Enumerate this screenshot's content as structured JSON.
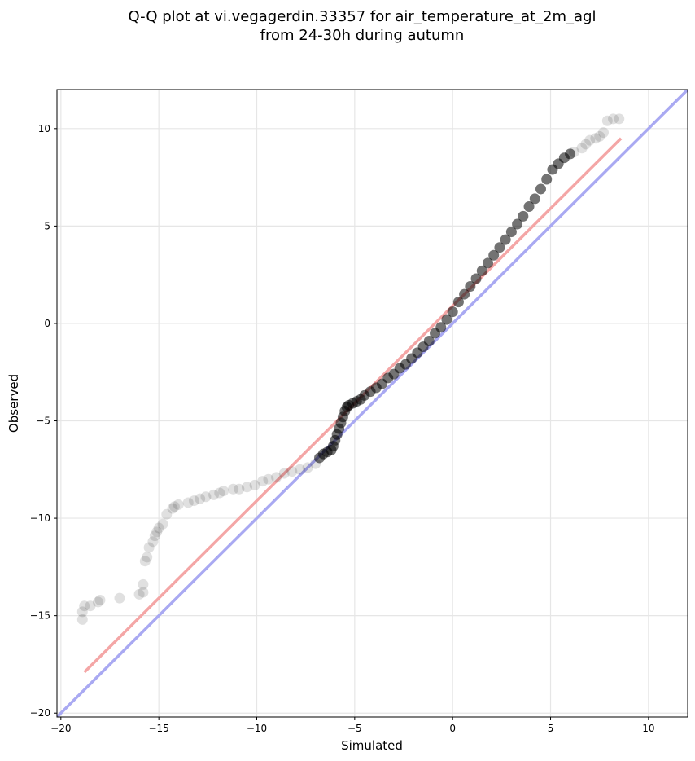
{
  "chart_data": {
    "type": "scatter",
    "title_line1": "Q-Q plot at vi.vegagerdin.33357 for air_temperature_at_2m_agl",
    "title_line2": "from 24-30h during autumn",
    "xlabel": "Simulated",
    "ylabel": "Observed",
    "xlim": [
      -20.2,
      12
    ],
    "ylim": [
      -20.2,
      12
    ],
    "xticks": [
      -20,
      -15,
      -10,
      -5,
      0,
      5,
      10
    ],
    "yticks": [
      -20,
      -15,
      -10,
      -5,
      0,
      5,
      10
    ],
    "xtick_labels": [
      "−20",
      "−15",
      "−10",
      "−5",
      "0",
      "5",
      "10"
    ],
    "ytick_labels": [
      "−20",
      "−15",
      "−10",
      "−5",
      "0",
      "5",
      "10"
    ],
    "grid": true,
    "colors": {
      "reference_line": "#a9a9f2",
      "fit_line": "#f4a6a6",
      "point": "#000000",
      "grid": "#e6e6e6"
    },
    "reference_line": {
      "x": [
        -20.2,
        12
      ],
      "y": [
        -20.2,
        12
      ]
    },
    "fit_line": {
      "x": [
        -18.8,
        8.6
      ],
      "y": [
        -17.9,
        9.5
      ]
    },
    "series": [
      {
        "role": "tail_points",
        "x": [
          -18.9,
          -18.9,
          -18.8,
          -18.5,
          -18.1,
          -18.0,
          -17.0,
          -16.0,
          -15.8,
          -15.8,
          -15.7,
          -15.6,
          -15.5,
          -15.3,
          -15.2,
          -15.1,
          -15.0,
          -14.8,
          -14.6,
          -14.3,
          -14.2,
          -14.0,
          -13.5,
          -13.2,
          -12.9,
          -12.6,
          -12.2,
          -11.9,
          -11.7,
          -11.2,
          -10.9,
          -10.5,
          -10.1,
          -9.7,
          -9.4,
          -9.0,
          -8.6,
          -8.2,
          -7.8,
          -7.4,
          -7.0,
          6.2,
          6.6,
          6.8,
          7.0,
          7.3,
          7.5,
          7.7,
          7.9,
          8.2,
          8.5
        ],
        "y": [
          -15.2,
          -14.8,
          -14.5,
          -14.5,
          -14.3,
          -14.2,
          -14.1,
          -13.9,
          -13.8,
          -13.4,
          -12.2,
          -12.0,
          -11.5,
          -11.2,
          -10.9,
          -10.7,
          -10.5,
          -10.3,
          -9.8,
          -9.5,
          -9.4,
          -9.3,
          -9.2,
          -9.1,
          -9.0,
          -8.9,
          -8.8,
          -8.7,
          -8.6,
          -8.5,
          -8.5,
          -8.4,
          -8.3,
          -8.1,
          -8.0,
          -7.9,
          -7.7,
          -7.6,
          -7.5,
          -7.4,
          -7.2,
          8.8,
          9.0,
          9.2,
          9.4,
          9.5,
          9.6,
          9.8,
          10.4,
          10.5,
          10.5
        ]
      },
      {
        "role": "core_points",
        "x": [
          -6.8,
          -6.6,
          -6.4,
          -6.2,
          -6.1,
          -6.0,
          -5.9,
          -5.8,
          -5.7,
          -5.6,
          -5.5,
          -5.4,
          -5.3,
          -5.1,
          -4.9,
          -4.7,
          -4.5,
          -4.2,
          -3.9,
          -3.6,
          -3.3,
          -3.0,
          -2.7,
          -2.4,
          -2.1,
          -1.8,
          -1.5,
          -1.2,
          -0.9,
          -0.6,
          -0.3,
          0.0,
          0.3,
          0.6,
          0.9,
          1.2,
          1.5,
          1.8,
          2.1,
          2.4,
          2.7,
          3.0,
          3.3,
          3.6,
          3.9,
          4.2,
          4.5,
          4.8,
          5.1,
          5.4,
          5.7,
          6.0
        ],
        "y": [
          -6.9,
          -6.7,
          -6.6,
          -6.5,
          -6.3,
          -6.0,
          -5.7,
          -5.4,
          -5.1,
          -4.8,
          -4.5,
          -4.3,
          -4.2,
          -4.1,
          -4.0,
          -3.9,
          -3.7,
          -3.5,
          -3.3,
          -3.1,
          -2.8,
          -2.6,
          -2.3,
          -2.1,
          -1.8,
          -1.5,
          -1.2,
          -0.9,
          -0.5,
          -0.2,
          0.2,
          0.6,
          1.1,
          1.5,
          1.9,
          2.3,
          2.7,
          3.1,
          3.5,
          3.9,
          4.3,
          4.7,
          5.1,
          5.5,
          6.0,
          6.4,
          6.9,
          7.4,
          7.9,
          8.2,
          8.5,
          8.7
        ]
      }
    ]
  }
}
